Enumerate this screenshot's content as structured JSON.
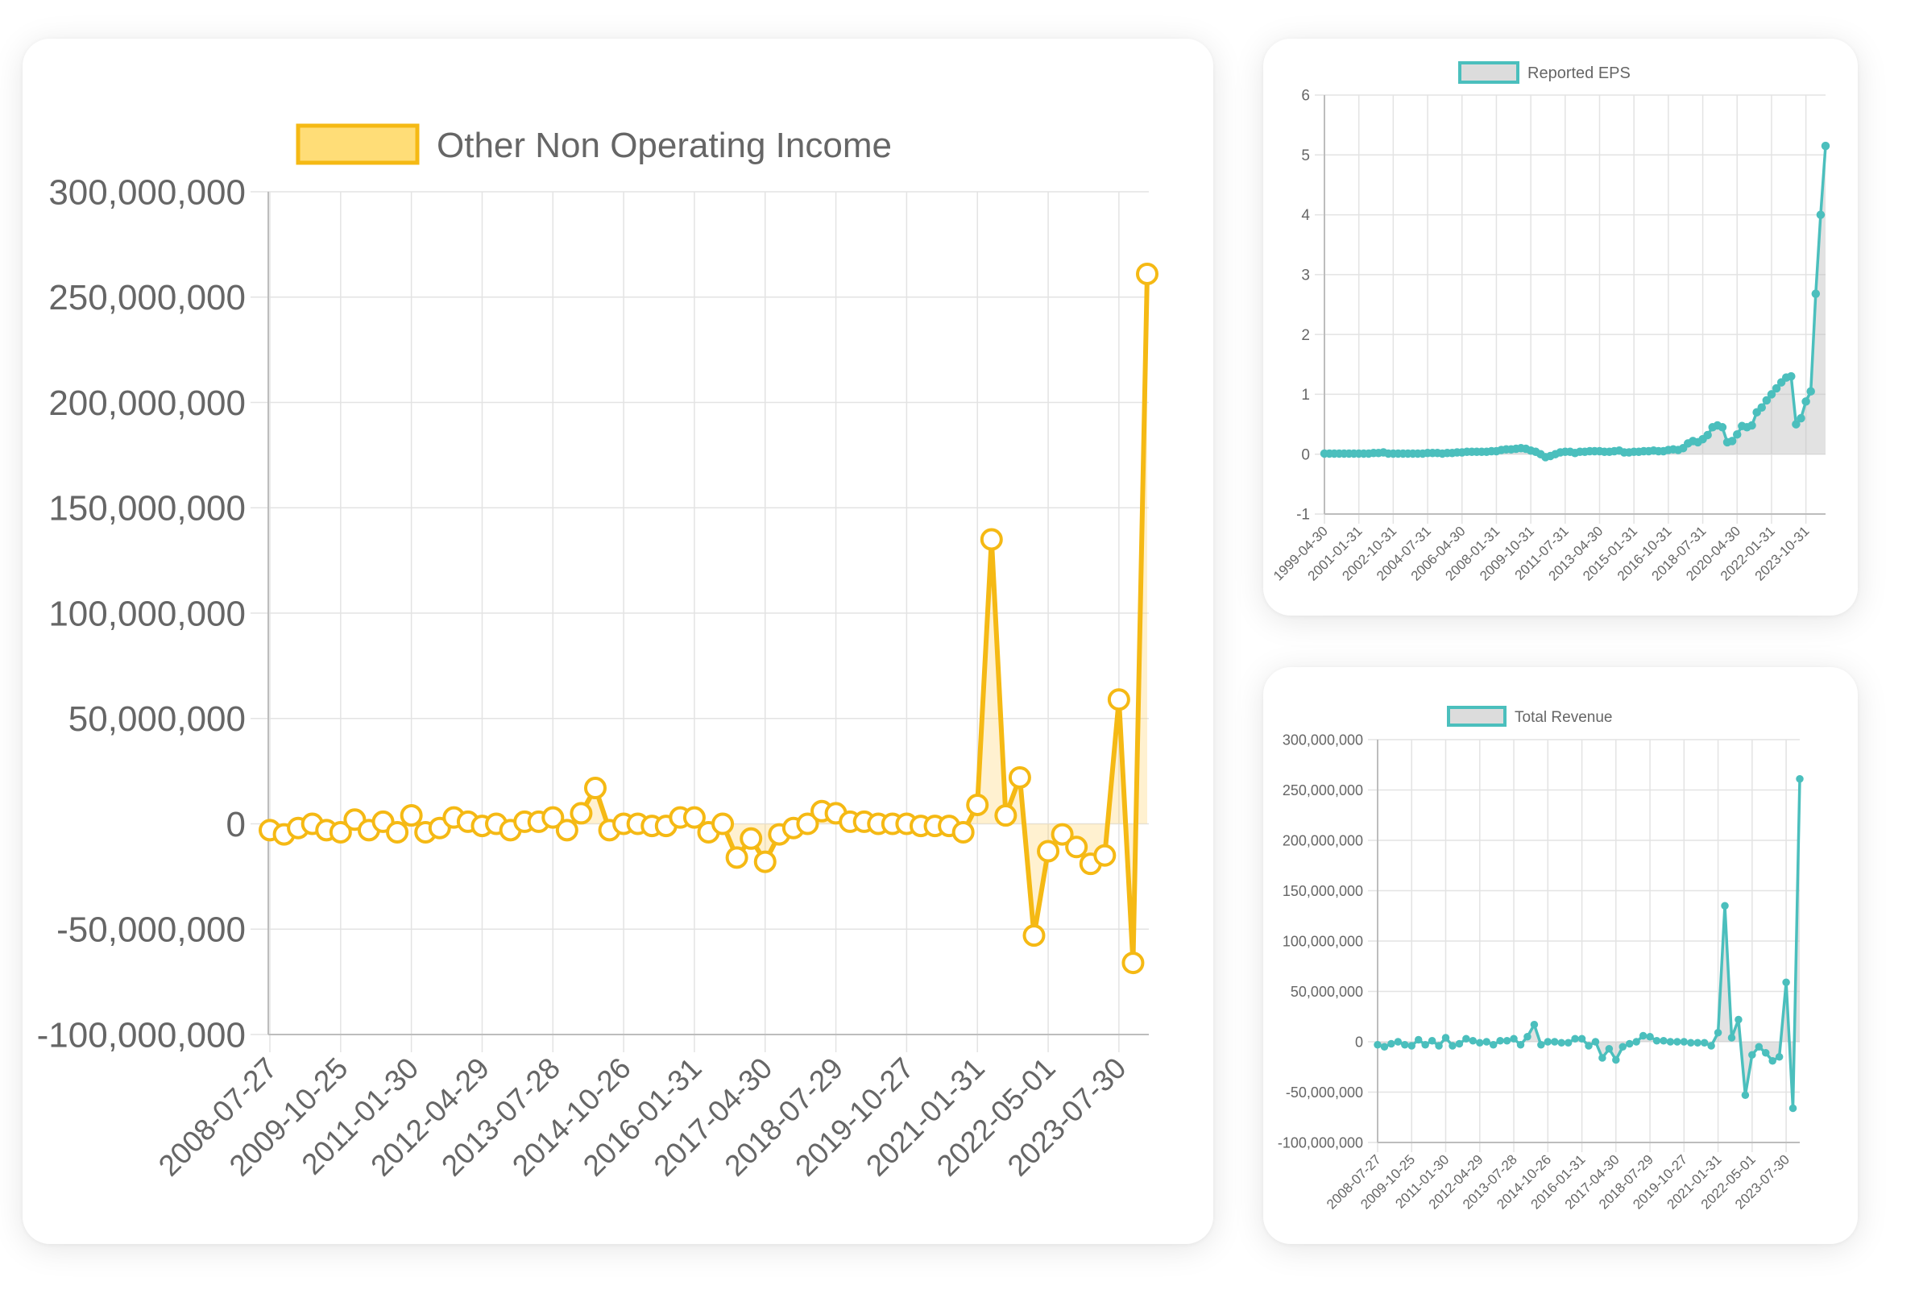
{
  "colors": {
    "main_line": "#f5b914",
    "main_fill": "rgba(255,205,86,0.28)",
    "main_legend_fill": "#ffdd77",
    "teal_line": "#4bbfbd",
    "teal_fill": "rgba(190,190,190,0.45)",
    "teal_legend_fill": "#dcdcdc",
    "grid": "#e3e3e3",
    "text": "#666666"
  },
  "chart_data": [
    {
      "type": "line",
      "series": [
        {
          "name": "Other Non Operating Income",
          "values": [
            -3000000,
            -5000000,
            -2000000,
            0,
            -3000000,
            -4000000,
            2000000,
            -3000000,
            1000000,
            -4000000,
            4000000,
            -4000000,
            -2000000,
            3000000,
            1000000,
            -1000000,
            0,
            -3000000,
            1000000,
            1000000,
            3000000,
            -3000000,
            5000000,
            17000000,
            -3000000,
            0,
            0,
            -1000000,
            -1000000,
            3000000,
            3000000,
            -4000000,
            0,
            -16000000,
            -7000000,
            -18000000,
            -5000000,
            -2000000,
            0,
            6000000,
            5000000,
            1000000,
            1000000,
            0,
            0,
            0,
            -1000000,
            -1000000,
            -1000000,
            -4000000,
            9000000,
            135000000,
            4000000,
            22000000,
            -53000000,
            -13000000,
            -5000000,
            -11000000,
            -19000000,
            -15000000,
            59000000,
            -66000000,
            261000000
          ]
        }
      ],
      "x_tick_labels": [
        "2008-07-27",
        "2009-10-25",
        "2011-01-30",
        "2012-04-29",
        "2013-07-28",
        "2014-10-26",
        "2016-01-31",
        "2017-04-30",
        "2018-07-29",
        "2019-10-27",
        "2021-01-31",
        "2022-05-01",
        "2023-07-30"
      ],
      "y_tick_labels": [
        "300,000,000",
        "250,000,000",
        "200,000,000",
        "150,000,000",
        "100,000,000",
        "50,000,000",
        "0",
        "-50,000,000",
        "-100,000,000"
      ],
      "ylim": [
        -100000000,
        300000000
      ],
      "legend": "top",
      "grid": true
    },
    {
      "type": "line",
      "series": [
        {
          "name": "Reported EPS",
          "values": [
            0.01,
            0.01,
            0.01,
            0.01,
            0.01,
            0.01,
            0.01,
            0.01,
            0.01,
            0.01,
            0.02,
            0.02,
            0.03,
            0.01,
            0.01,
            0.01,
            0.01,
            0.01,
            0.01,
            0.01,
            0.01,
            0.02,
            0.02,
            0.02,
            0.01,
            0.02,
            0.02,
            0.03,
            0.03,
            0.04,
            0.04,
            0.04,
            0.04,
            0.04,
            0.05,
            0.05,
            0.07,
            0.08,
            0.08,
            0.09,
            0.1,
            0.09,
            0.06,
            0.04,
            0.0,
            -0.05,
            -0.03,
            0.0,
            0.03,
            0.04,
            0.04,
            0.02,
            0.04,
            0.04,
            0.05,
            0.05,
            0.05,
            0.04,
            0.04,
            0.05,
            0.06,
            0.03,
            0.03,
            0.04,
            0.04,
            0.05,
            0.05,
            0.06,
            0.05,
            0.05,
            0.07,
            0.08,
            0.07,
            0.1,
            0.18,
            0.22,
            0.2,
            0.25,
            0.32,
            0.45,
            0.48,
            0.45,
            0.2,
            0.22,
            0.33,
            0.47,
            0.45,
            0.48,
            0.7,
            0.78,
            0.9,
            1.0,
            1.1,
            1.2,
            1.28,
            1.3,
            0.5,
            0.6,
            0.88,
            1.05,
            2.68,
            4.0,
            5.15
          ]
        }
      ],
      "x_tick_labels": [
        "1999-04-30",
        "2001-01-31",
        "2002-10-31",
        "2004-07-31",
        "2006-04-30",
        "2008-01-31",
        "2009-10-31",
        "2011-07-31",
        "2013-04-30",
        "2015-01-31",
        "2016-10-31",
        "2018-07-31",
        "2020-04-30",
        "2022-01-31",
        "2023-10-31"
      ],
      "y_tick_labels": [
        "6",
        "5",
        "4",
        "3",
        "2",
        "1",
        "0",
        "-1"
      ],
      "ylim": [
        -1,
        6
      ],
      "legend": "top",
      "grid": true
    },
    {
      "type": "line",
      "series": [
        {
          "name": "Total Revenue",
          "values": [
            -3000000,
            -5000000,
            -2000000,
            0,
            -3000000,
            -4000000,
            2000000,
            -3000000,
            1000000,
            -4000000,
            4000000,
            -4000000,
            -2000000,
            3000000,
            1000000,
            -1000000,
            0,
            -3000000,
            1000000,
            1000000,
            3000000,
            -3000000,
            5000000,
            17000000,
            -3000000,
            0,
            0,
            -1000000,
            -1000000,
            3000000,
            3000000,
            -4000000,
            0,
            -16000000,
            -7000000,
            -18000000,
            -5000000,
            -2000000,
            0,
            6000000,
            5000000,
            1000000,
            1000000,
            0,
            0,
            0,
            -1000000,
            -1000000,
            -1000000,
            -4000000,
            9000000,
            135000000,
            4000000,
            22000000,
            -53000000,
            -13000000,
            -5000000,
            -11000000,
            -19000000,
            -15000000,
            59000000,
            -66000000,
            261000000
          ]
        }
      ],
      "x_tick_labels": [
        "2008-07-27",
        "2009-10-25",
        "2011-01-30",
        "2012-04-29",
        "2013-07-28",
        "2014-10-26",
        "2016-01-31",
        "2017-04-30",
        "2018-07-29",
        "2019-10-27",
        "2021-01-31",
        "2022-05-01",
        "2023-07-30"
      ],
      "y_tick_labels": [
        "300,000,000",
        "250,000,000",
        "200,000,000",
        "150,000,000",
        "100,000,000",
        "50,000,000",
        "0",
        "-50,000,000",
        "-100,000,000"
      ],
      "ylim": [
        -100000000,
        300000000
      ],
      "legend": "top",
      "grid": true
    }
  ]
}
